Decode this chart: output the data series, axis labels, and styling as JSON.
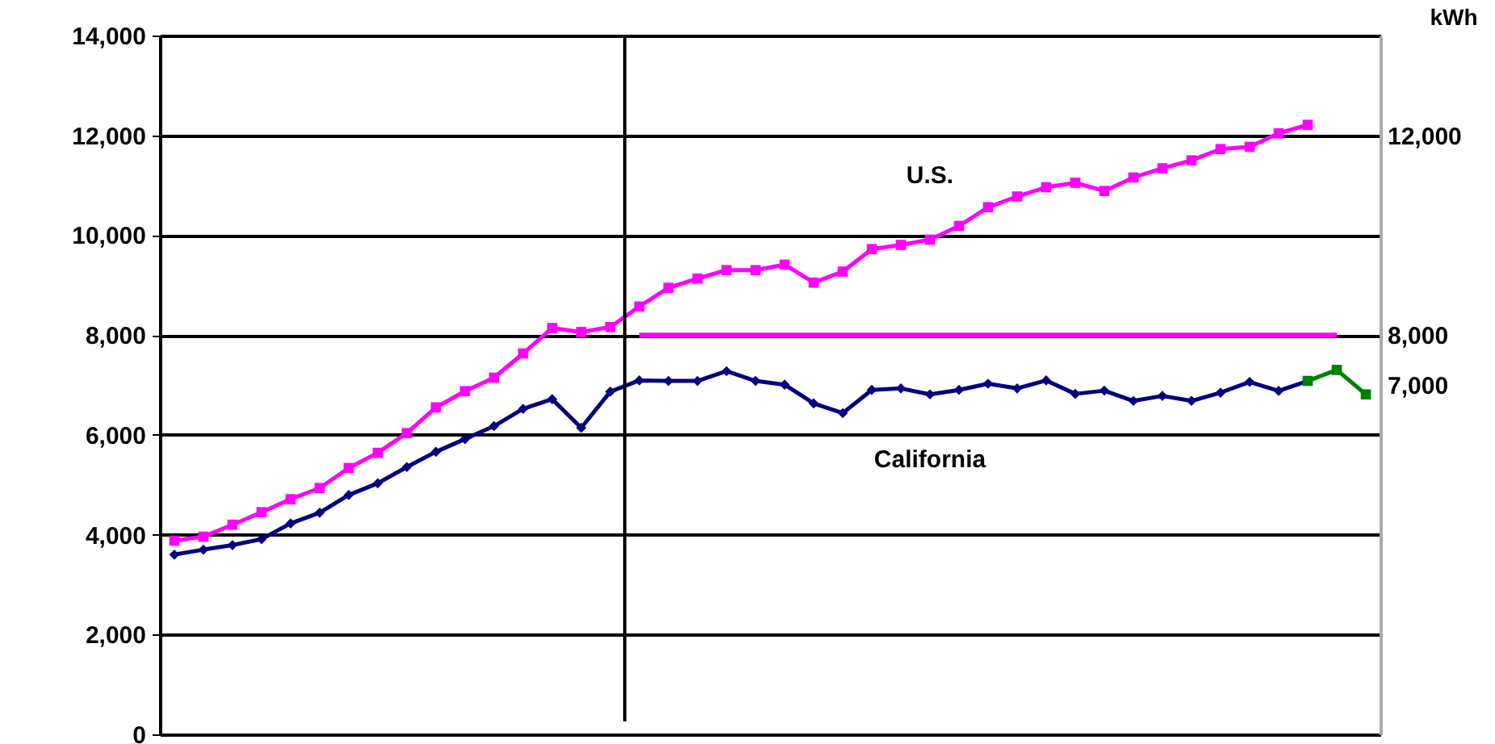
{
  "chart_data": {
    "type": "line",
    "categories": [
      null,
      null,
      null,
      null,
      null,
      null,
      null,
      null,
      null,
      null,
      null,
      null,
      null,
      null,
      null,
      null,
      null,
      null,
      null,
      null,
      null,
      null,
      null,
      null,
      null,
      null,
      null,
      null,
      null,
      null,
      null,
      null,
      null,
      null,
      null,
      null,
      null,
      null,
      null,
      null,
      null,
      null
    ],
    "series": [
      {
        "name": "U.S.",
        "color": "#ff00ff",
        "marker": "square",
        "values": [
          3880,
          3960,
          4200,
          4450,
          4710,
          4935,
          5335,
          5640,
          6035,
          6550,
          6875,
          7145,
          7630,
          8140,
          8060,
          8160,
          8570,
          8945,
          9130,
          9300,
          9300,
          9410,
          9050,
          9270,
          9720,
          9805,
          9910,
          10185,
          10560,
          10775,
          10960,
          11050,
          10885,
          11155,
          11340,
          11500,
          11725,
          11770,
          12040,
          12210,
          null,
          null
        ]
      },
      {
        "name": "California",
        "color": "#000080",
        "marker": "diamond",
        "values": [
          3600,
          3700,
          3790,
          3910,
          4225,
          4440,
          4795,
          5030,
          5355,
          5660,
          5915,
          6175,
          6520,
          6715,
          6140,
          6865,
          7090,
          7080,
          7080,
          7275,
          7080,
          7005,
          6630,
          6435,
          6900,
          6930,
          6810,
          6900,
          7025,
          6930,
          7090,
          6820,
          6885,
          6680,
          6780,
          6680,
          6845,
          7060,
          6880,
          7080,
          null,
          null
        ]
      },
      {
        "color": "#008000",
        "marker": "square",
        "values": [
          null,
          null,
          null,
          null,
          null,
          null,
          null,
          null,
          null,
          null,
          null,
          null,
          null,
          null,
          null,
          null,
          null,
          null,
          null,
          null,
          null,
          null,
          null,
          null,
          null,
          null,
          null,
          null,
          null,
          null,
          null,
          null,
          null,
          null,
          null,
          null,
          null,
          null,
          null,
          7080,
          7300,
          6810
        ]
      },
      {
        "color": "#ff00ff",
        "marker": "none",
        "values": [
          null,
          null,
          null,
          null,
          null,
          null,
          null,
          null,
          null,
          null,
          null,
          null,
          null,
          null,
          null,
          null,
          8000,
          8000,
          8000,
          8000,
          8000,
          8000,
          8000,
          8000,
          8000,
          8000,
          8000,
          8000,
          8000,
          8000,
          8000,
          8000,
          8000,
          8000,
          8000,
          8000,
          8000,
          8000,
          8000,
          8000,
          8000,
          null
        ]
      }
    ],
    "ylim": [
      0,
      14000
    ],
    "yticks": [
      0,
      {
        "value": 2000,
        "label": "2,000"
      },
      {
        "value": 4000,
        "label": "4,000"
      },
      {
        "value": 6000,
        "label": "6,000"
      },
      {
        "value": 8000,
        "label": "8,000"
      },
      {
        "value": 10000,
        "label": "10,000"
      },
      {
        "value": 12000,
        "label": "12,000"
      },
      {
        "value": 14000,
        "label": "14,000"
      }
    ],
    "y2label": "kWh",
    "y2lim": [
      0,
      14000
    ],
    "y2ticks": [
      {
        "value": 7000,
        "label": "7,000"
      },
      {
        "value": 8000,
        "label": "8,000"
      },
      {
        "value": 12000,
        "label": "12,000"
      }
    ],
    "grid": "y",
    "legend": false,
    "line_style": "solid"
  }
}
